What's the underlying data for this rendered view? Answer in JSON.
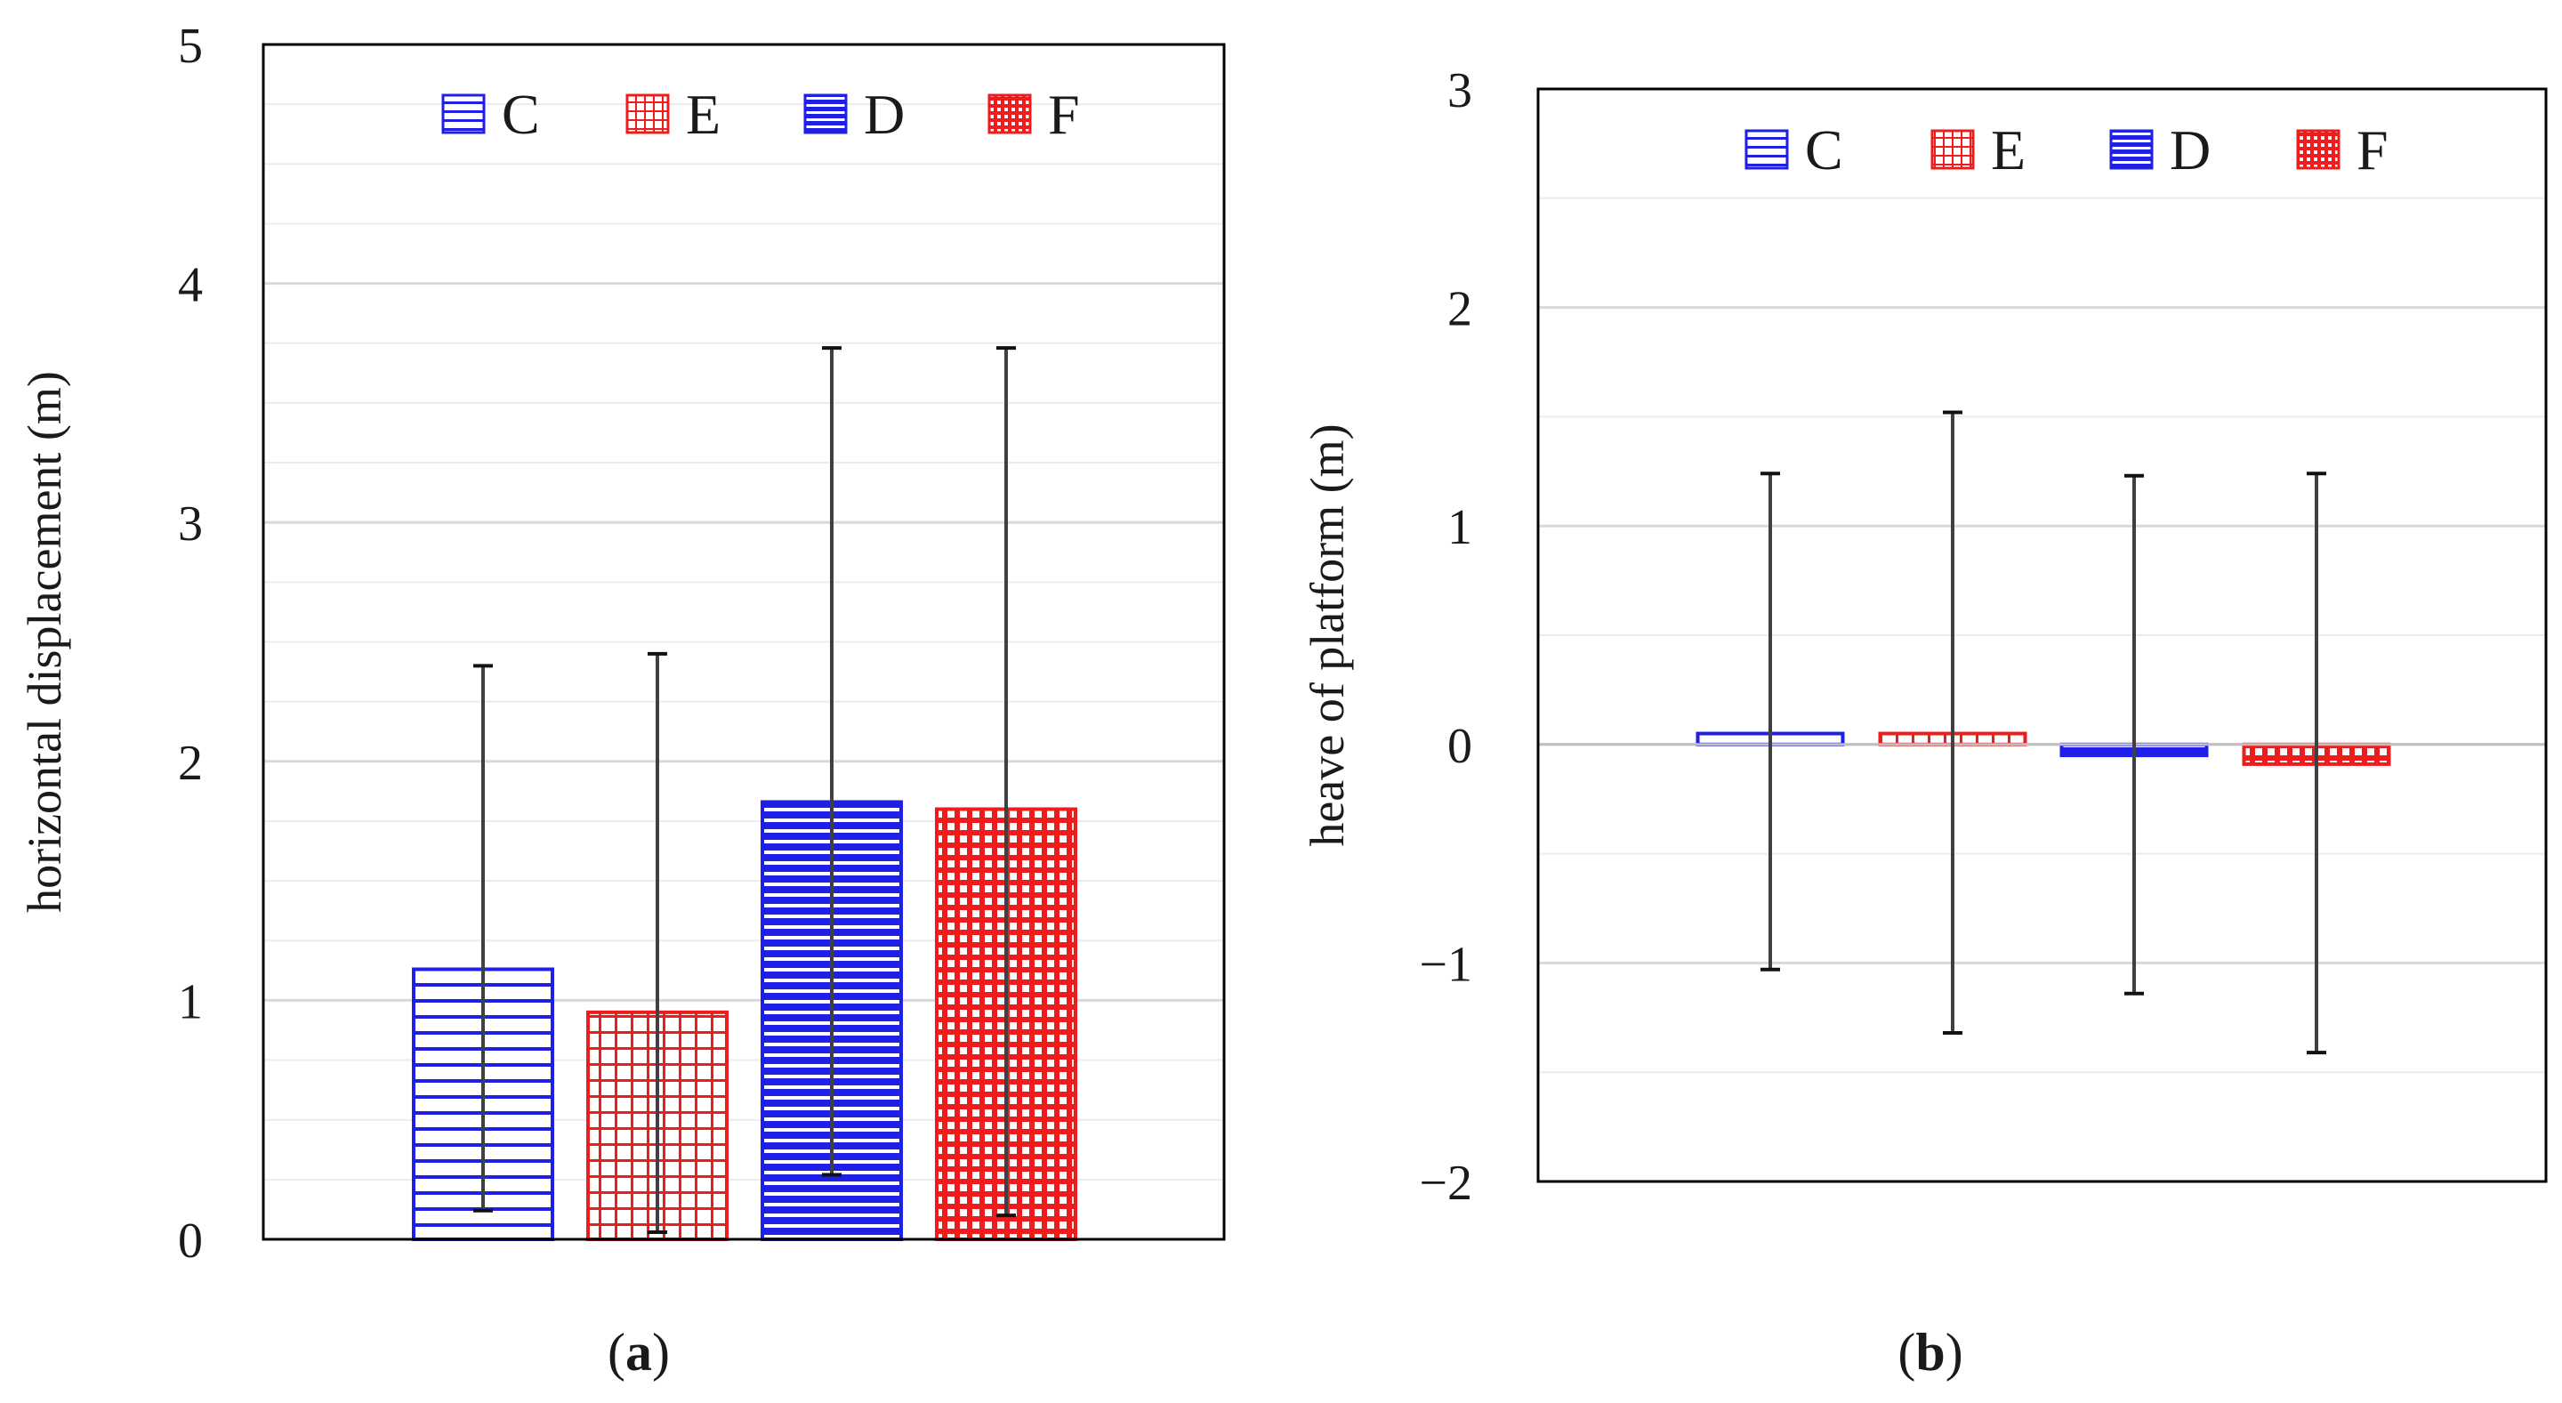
{
  "colors": {
    "blue": "#1f1fe6",
    "red": "#ee1c1c",
    "grid": "#d9d9d9",
    "minor_grid": "#ececec",
    "errbar": "#404040"
  },
  "legend_patterns": {
    "C": "hline-sparse",
    "E": "grid-sparse",
    "D": "hline-dense",
    "F": "grid-dense"
  },
  "chart_data": [
    {
      "id": "a",
      "type": "bar",
      "caption_letter": "a",
      "ylabel": "horizontal displacement  (m)",
      "ylim": [
        0,
        5
      ],
      "yticks": [
        "0",
        "1",
        "2",
        "3",
        "4",
        "5"
      ],
      "grid": true,
      "legend_position": "top-center",
      "categories": [
        "C",
        "E",
        "D",
        "F"
      ],
      "series": [
        {
          "name": "C",
          "color": "blue",
          "pattern": "hline-sparse",
          "value": 1.13,
          "err_low": 0.12,
          "err_high": 2.4
        },
        {
          "name": "E",
          "color": "red",
          "pattern": "grid-sparse",
          "value": 0.95,
          "err_low": 0.03,
          "err_high": 2.45
        },
        {
          "name": "D",
          "color": "blue",
          "pattern": "hline-dense",
          "value": 1.83,
          "err_low": 0.27,
          "err_high": 3.73
        },
        {
          "name": "F",
          "color": "red",
          "pattern": "grid-dense",
          "value": 1.8,
          "err_low": 0.1,
          "err_high": 3.73
        }
      ]
    },
    {
      "id": "b",
      "type": "bar",
      "caption_letter": "b",
      "ylabel": "heave of platform (m)",
      "ylim": [
        -2,
        3
      ],
      "yticks": [
        "−2",
        "−1",
        "0",
        "1",
        "2",
        "3"
      ],
      "grid": true,
      "legend_position": "top-center",
      "categories": [
        "C",
        "E",
        "D",
        "F"
      ],
      "series": [
        {
          "name": "C",
          "color": "blue",
          "pattern": "hline-sparse",
          "value": 0.05,
          "err_low": -1.03,
          "err_high": 1.24
        },
        {
          "name": "E",
          "color": "red",
          "pattern": "grid-sparse",
          "value": 0.05,
          "err_low": -1.32,
          "err_high": 1.52
        },
        {
          "name": "D",
          "color": "blue",
          "pattern": "hline-dense",
          "value": -0.05,
          "err_low": -1.14,
          "err_high": 1.23
        },
        {
          "name": "F",
          "color": "red",
          "pattern": "grid-dense",
          "value": -0.09,
          "err_low": -1.41,
          "err_high": 1.24
        }
      ]
    }
  ]
}
